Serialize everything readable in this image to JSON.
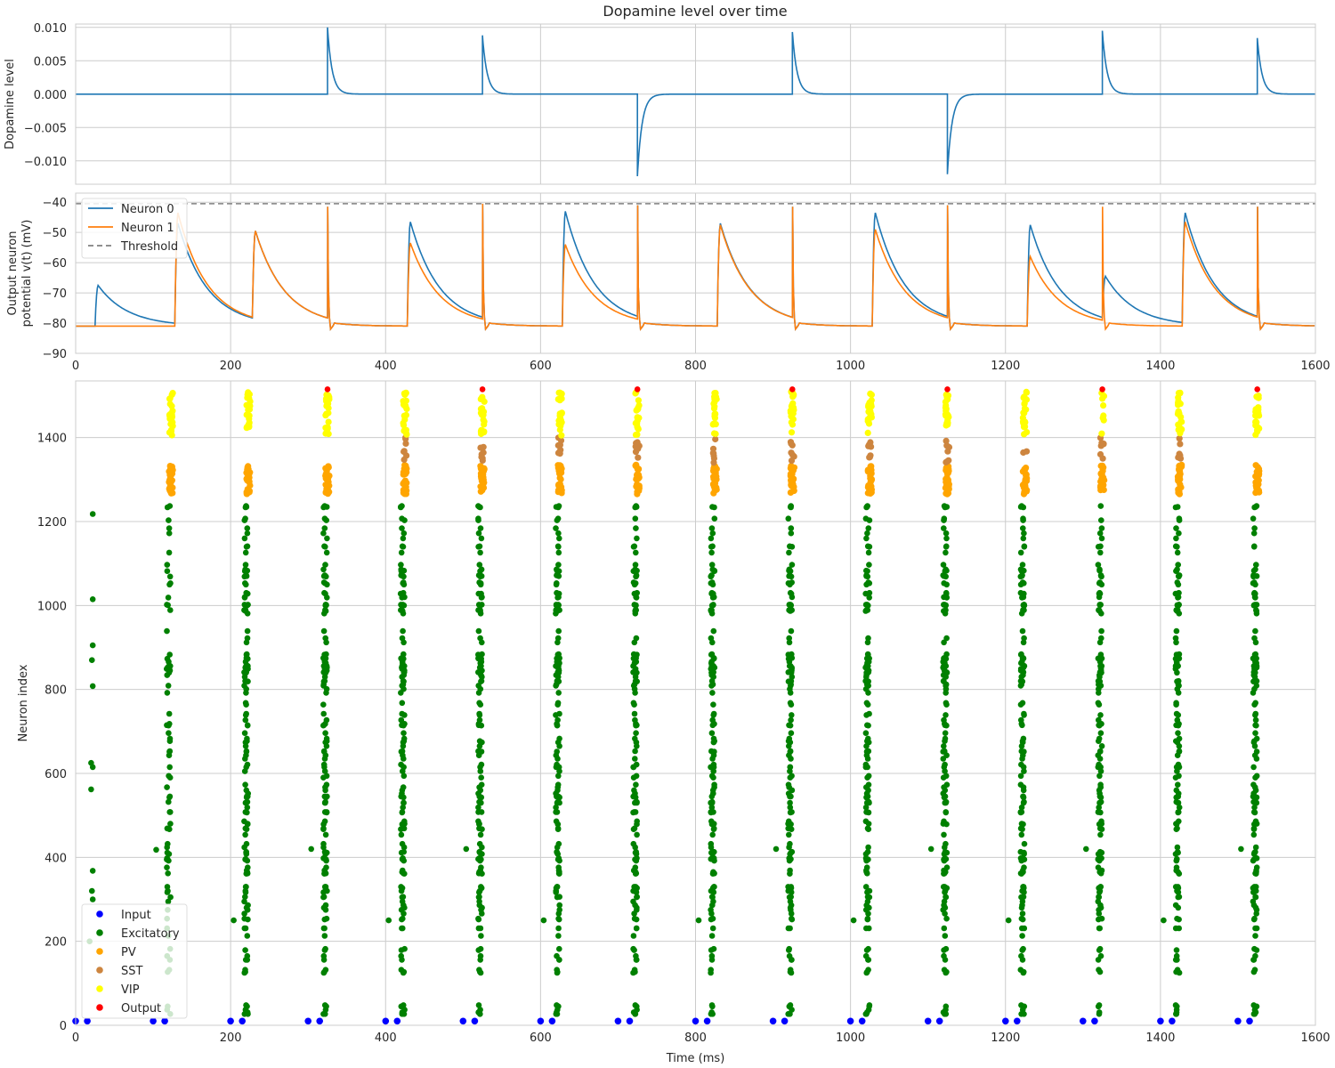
{
  "chart_data": [
    {
      "type": "line",
      "title": "Dopamine level over time",
      "xlabel": "",
      "ylabel": "Dopamine level",
      "xlim": [
        0,
        1600
      ],
      "ylim": [
        -0.0135,
        0.0105
      ],
      "yticks": [
        0.01,
        0.005,
        0.0,
        -0.005,
        -0.01
      ],
      "ytick_labels": [
        "0.010",
        "0.005",
        "0.000",
        "−0.005",
        "−0.010"
      ],
      "grid": true,
      "decay_tau_ms": 6,
      "series": [
        {
          "color": "#1f77b4",
          "baseline": 0,
          "events": [
            {
              "t": 325,
              "peak": 0.01
            },
            {
              "t": 525,
              "peak": 0.0088
            },
            {
              "t": 725,
              "peak": -0.0123
            },
            {
              "t": 925,
              "peak": 0.0093
            },
            {
              "t": 1125,
              "peak": -0.012
            },
            {
              "t": 1325,
              "peak": 0.0095
            },
            {
              "t": 1525,
              "peak": 0.0084
            }
          ]
        }
      ]
    },
    {
      "type": "line",
      "title": "",
      "xlabel": "",
      "ylabel": [
        "Output neuron",
        "potential v(t) (mV)"
      ],
      "xlim": [
        0,
        1600
      ],
      "ylim": [
        -90,
        -37
      ],
      "xticks": [
        0,
        200,
        400,
        600,
        800,
        1000,
        1200,
        1400,
        1600
      ],
      "yticks": [
        -40,
        -50,
        -60,
        -70,
        -80,
        -90
      ],
      "ytick_labels": [
        "−40",
        "−50",
        "−60",
        "−70",
        "−80",
        "−90"
      ],
      "grid": true,
      "legend": "top-left",
      "rest_mV": -81,
      "threshold_mV": -40.5,
      "series": [
        {
          "name": "Neuron 0",
          "color": "#1f77b4",
          "events": [
            {
              "t": 25,
              "peak": -67.5,
              "spike": false
            },
            {
              "t": 128,
              "peak": -47.0,
              "spike": false
            },
            {
              "t": 228,
              "peak": -49.5,
              "spike": false
            },
            {
              "t": 325,
              "peak": -41.5,
              "spike": true
            },
            {
              "t": 428,
              "peak": -46.5,
              "spike": false
            },
            {
              "t": 525,
              "peak": -40.5,
              "spike": true
            },
            {
              "t": 628,
              "peak": -43.0,
              "spike": false
            },
            {
              "t": 725,
              "peak": -41.0,
              "spike": true
            },
            {
              "t": 828,
              "peak": -47.0,
              "spike": false
            },
            {
              "t": 925,
              "peak": -41.5,
              "spike": true
            },
            {
              "t": 1028,
              "peak": -43.5,
              "spike": false
            },
            {
              "t": 1125,
              "peak": -41.0,
              "spike": true
            },
            {
              "t": 1228,
              "peak": -47.5,
              "spike": false
            },
            {
              "t": 1325,
              "peak": -64.5,
              "spike": false
            },
            {
              "t": 1428,
              "peak": -43.5,
              "spike": false
            },
            {
              "t": 1525,
              "peak": -41.5,
              "spike": true
            }
          ]
        },
        {
          "name": "Neuron 1",
          "color": "#ff7f0e",
          "events": [
            {
              "t": 128,
              "peak": -43.5,
              "spike": false
            },
            {
              "t": 228,
              "peak": -49.5,
              "spike": false
            },
            {
              "t": 325,
              "peak": -41.5,
              "spike": true
            },
            {
              "t": 428,
              "peak": -53.5,
              "spike": false
            },
            {
              "t": 525,
              "peak": -40.5,
              "spike": true
            },
            {
              "t": 628,
              "peak": -54.0,
              "spike": false
            },
            {
              "t": 725,
              "peak": -41.0,
              "spike": true
            },
            {
              "t": 828,
              "peak": -47.5,
              "spike": false
            },
            {
              "t": 925,
              "peak": -41.5,
              "spike": true
            },
            {
              "t": 1028,
              "peak": -49.0,
              "spike": false
            },
            {
              "t": 1125,
              "peak": -41.0,
              "spike": true
            },
            {
              "t": 1228,
              "peak": -58.0,
              "spike": false
            },
            {
              "t": 1325,
              "peak": -41.5,
              "spike": true
            },
            {
              "t": 1428,
              "peak": -46.5,
              "spike": false
            },
            {
              "t": 1525,
              "peak": -41.5,
              "spike": true
            }
          ]
        },
        {
          "name": "Threshold",
          "color": "#808080",
          "dashed": true,
          "value": -40.5
        }
      ]
    },
    {
      "type": "scatter",
      "title": "",
      "xlabel": "Time (ms)",
      "ylabel": "Neuron index",
      "xlim": [
        0,
        1600
      ],
      "ylim": [
        0,
        1535
      ],
      "xticks": [
        0,
        200,
        400,
        600,
        800,
        1000,
        1200,
        1400,
        1600
      ],
      "yticks": [
        0,
        200,
        400,
        600,
        800,
        1000,
        1200,
        1400
      ],
      "grid": true,
      "legend": "bottom-left",
      "series": [
        {
          "name": "Input",
          "color": "#0000ff"
        },
        {
          "name": "Excitatory",
          "color": "#008000"
        },
        {
          "name": "PV",
          "color": "#ffa500"
        },
        {
          "name": "SST",
          "color": "#cd853f"
        },
        {
          "name": "VIP",
          "color": "#ffff00"
        },
        {
          "name": "Output",
          "color": "#ff0000"
        }
      ],
      "input_spike_times": [
        0,
        15,
        100,
        115,
        200,
        215,
        300,
        315,
        400,
        415,
        500,
        515,
        600,
        615,
        700,
        715,
        800,
        815,
        900,
        915,
        1000,
        1015,
        1100,
        1115,
        1200,
        1215,
        1300,
        1315,
        1400,
        1415,
        1500,
        1515
      ],
      "input_neuron_index": 10,
      "volley_times": [
        120,
        220,
        322,
        422,
        522,
        622,
        722,
        822,
        922,
        1022,
        1122,
        1222,
        1322,
        1422,
        1522
      ],
      "excitatory_range": [
        0,
        1260
      ],
      "pv_range": [
        1265,
        1335
      ],
      "sst_range": [
        1340,
        1400
      ],
      "vip_range": [
        1405,
        1510
      ],
      "sst_volleys": [
        422,
        522,
        622,
        722,
        822,
        922,
        1022,
        1122,
        1222,
        1322,
        1422
      ],
      "output_spikes": [
        {
          "t": 325,
          "index": 1515
        },
        {
          "t": 525,
          "index": 1515
        },
        {
          "t": 725,
          "index": 1515
        },
        {
          "t": 925,
          "index": 1515
        },
        {
          "t": 1125,
          "index": 1515
        },
        {
          "t": 1325,
          "index": 1515
        },
        {
          "t": 1525,
          "index": 1515
        }
      ],
      "stray_excitatory": [
        {
          "t": 22,
          "index": 1218
        },
        {
          "t": 22,
          "index": 1015
        },
        {
          "t": 22,
          "index": 905
        },
        {
          "t": 21,
          "index": 870
        },
        {
          "t": 22,
          "index": 808
        },
        {
          "t": 20,
          "index": 625
        },
        {
          "t": 22,
          "index": 615
        },
        {
          "t": 20,
          "index": 562
        },
        {
          "t": 22,
          "index": 368
        },
        {
          "t": 21,
          "index": 320
        },
        {
          "t": 22,
          "index": 300
        },
        {
          "t": 18,
          "index": 200
        },
        {
          "t": 104,
          "index": 418
        },
        {
          "t": 204,
          "index": 250
        },
        {
          "t": 304,
          "index": 420
        },
        {
          "t": 404,
          "index": 250
        },
        {
          "t": 504,
          "index": 420
        },
        {
          "t": 604,
          "index": 250
        },
        {
          "t": 804,
          "index": 250
        },
        {
          "t": 904,
          "index": 420
        },
        {
          "t": 1004,
          "index": 250
        },
        {
          "t": 1104,
          "index": 420
        },
        {
          "t": 1204,
          "index": 250
        },
        {
          "t": 1304,
          "index": 420
        },
        {
          "t": 1404,
          "index": 250
        },
        {
          "t": 1504,
          "index": 420
        }
      ]
    }
  ]
}
